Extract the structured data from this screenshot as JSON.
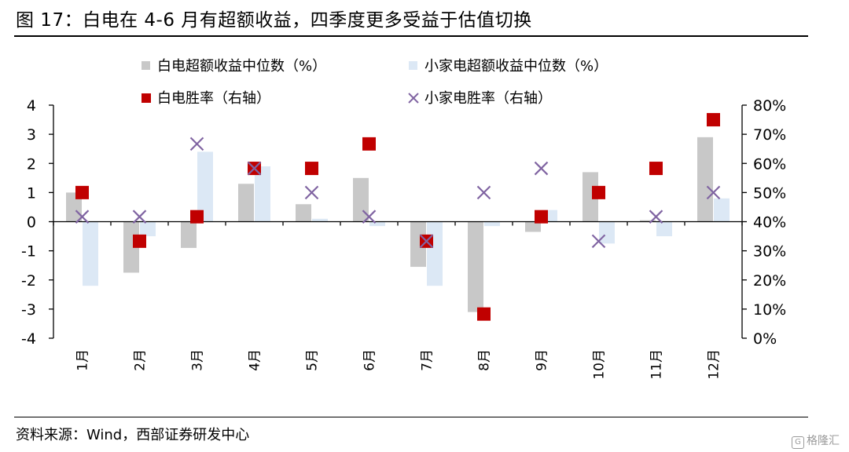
{
  "title": "图 17：白电在 4-6 月有超额收益，四季度更多受益于估值切换",
  "source": "资料来源：Wind，西部证券研发中心",
  "watermark": "格隆汇",
  "colors": {
    "bar1": "#c8c8c8",
    "bar2": "#dce8f5",
    "marker1": "#c00000",
    "marker2": "#8064a2",
    "axis": "#000000"
  },
  "chart_data": {
    "type": "bar",
    "categories": [
      "1月",
      "2月",
      "3月",
      "4月",
      "5月",
      "6月",
      "7月",
      "8月",
      "9月",
      "10月",
      "11月",
      "12月"
    ],
    "left_axis": {
      "ylim": [
        -4,
        4
      ],
      "ticks": [
        "4",
        "3",
        "2",
        "1",
        "0",
        "-1",
        "-2",
        "-3",
        "-4"
      ]
    },
    "right_axis": {
      "ylim": [
        0,
        80
      ],
      "ticks": [
        "80%",
        "70%",
        "60%",
        "50%",
        "40%",
        "30%",
        "20%",
        "10%",
        "0%"
      ]
    },
    "legend": {
      "placement": "top"
    },
    "series": [
      {
        "name": "白电超额收益中位数（%）",
        "type": "bar",
        "axis": "left",
        "values": [
          1.0,
          -1.75,
          -0.9,
          1.3,
          0.6,
          1.5,
          -1.55,
          -3.1,
          -0.35,
          1.7,
          0.05,
          2.9
        ]
      },
      {
        "name": "小家电超额收益中位数（%）",
        "type": "bar",
        "axis": "left",
        "values": [
          -2.2,
          -0.5,
          2.4,
          1.9,
          0.1,
          -0.15,
          -2.2,
          -0.15,
          0.4,
          -0.75,
          -0.5,
          0.8
        ]
      },
      {
        "name": "白电胜率（右轴）",
        "type": "marker",
        "marker": "square",
        "axis": "right",
        "values": [
          50,
          33.3,
          41.7,
          58.3,
          58.3,
          66.7,
          33.3,
          8.3,
          41.7,
          50,
          58.3,
          75
        ]
      },
      {
        "name": "小家电胜率（右轴）",
        "type": "marker",
        "marker": "x",
        "axis": "right",
        "values": [
          41.7,
          41.7,
          66.7,
          58.3,
          50,
          41.7,
          33.3,
          50,
          58.3,
          33.3,
          41.7,
          50
        ]
      }
    ]
  }
}
